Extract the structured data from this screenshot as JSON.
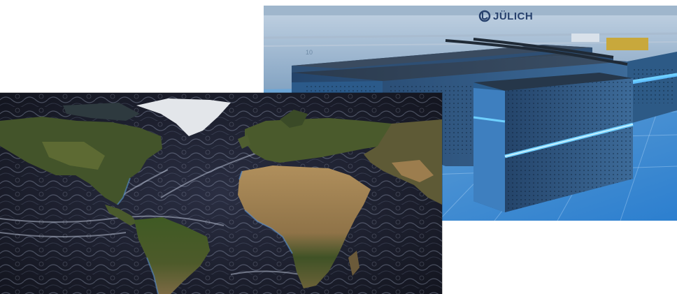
{
  "hpc_photo": {
    "logo_text": "JÜLICH",
    "rack_label": "10",
    "accent_color": "#3fa6ff"
  },
  "map_photo": {
    "ocean_color": "#1a1d2c",
    "land_color": "#4f5a2e",
    "desert_color": "#9c7a4c",
    "ice_color": "#dfe2e6"
  }
}
